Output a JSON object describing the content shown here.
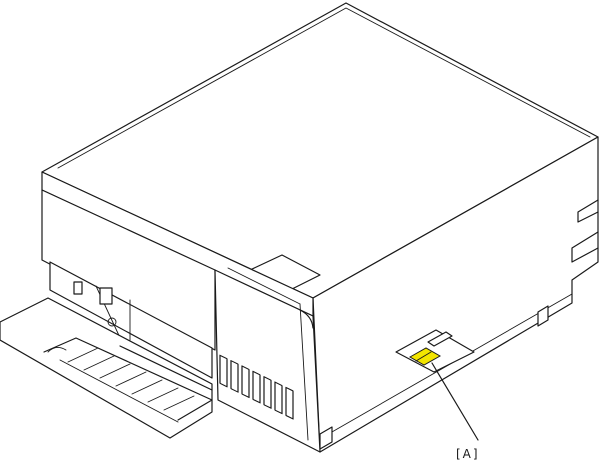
{
  "diagram": {
    "callout_label": "[A]",
    "highlight_color": "#f2e500",
    "line_color": "#1a1a1a",
    "background": "#ffffff"
  }
}
